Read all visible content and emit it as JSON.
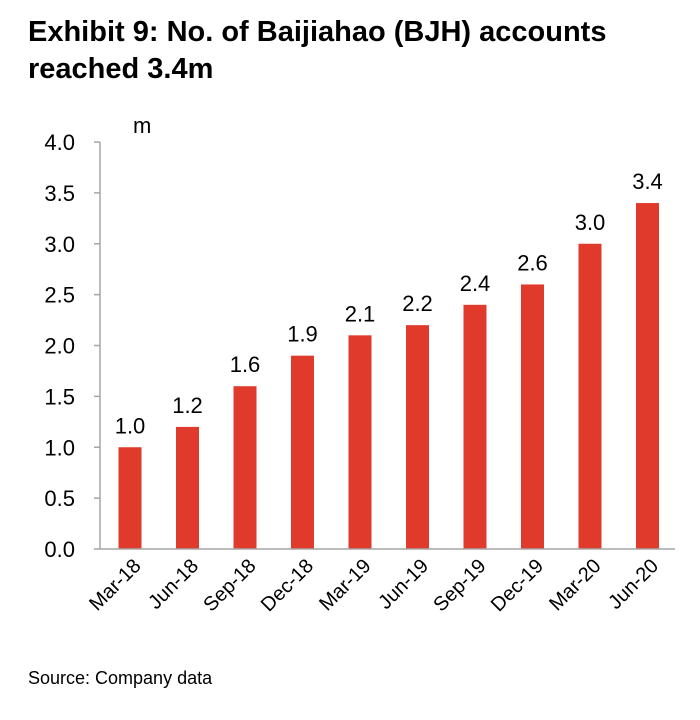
{
  "title_line1": "Exhibit 9: No. of Baijiahao (BJH) accounts",
  "title_line2": "reached 3.4m",
  "source": "Source: Company data",
  "chart_data": {
    "type": "bar",
    "title": "Exhibit 9: No. of Baijiahao (BJH) accounts reached 3.4m",
    "unit_label": "m",
    "categories": [
      "Mar-18",
      "Jun-18",
      "Sep-18",
      "Dec-18",
      "Mar-19",
      "Jun-19",
      "Sep-19",
      "Dec-19",
      "Mar-20",
      "Jun-20"
    ],
    "values": [
      1.0,
      1.2,
      1.6,
      1.9,
      2.1,
      2.2,
      2.4,
      2.6,
      3.0,
      3.4
    ],
    "data_labels": [
      "1.0",
      "1.2",
      "1.6",
      "1.9",
      "2.1",
      "2.2",
      "2.4",
      "2.6",
      "3.0",
      "3.4"
    ],
    "ylim": [
      0,
      4.0
    ],
    "yticks": [
      "0.0",
      "0.5",
      "1.0",
      "1.5",
      "2.0",
      "2.5",
      "3.0",
      "3.5",
      "4.0"
    ],
    "grid": false,
    "bar_color": "#e03a2d",
    "axis_color": "#a6a6a6"
  }
}
